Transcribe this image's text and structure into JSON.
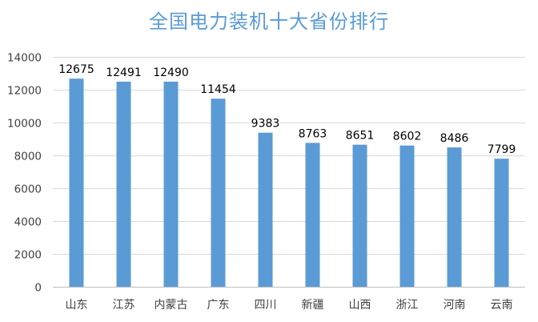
{
  "chart_data": {
    "type": "bar",
    "title": "全国电力装机十大省份排行",
    "categories": [
      "山东",
      "江苏",
      "内蒙古",
      "广东",
      "四川",
      "新疆",
      "山西",
      "浙江",
      "河南",
      "云南"
    ],
    "values": [
      12675,
      12491,
      12490,
      11454,
      9383,
      8763,
      8651,
      8602,
      8486,
      7799
    ],
    "ylim": [
      0,
      14000
    ],
    "yticks": [
      0,
      2000,
      4000,
      6000,
      8000,
      10000,
      12000,
      14000
    ],
    "xlabel": "",
    "ylabel": "",
    "grid": true,
    "legend": "none",
    "data_labels": true,
    "colors": {
      "bar": "#5b9bd5",
      "title": "#5b9bd5",
      "grid": "#d9d9d9",
      "text": "#404040"
    }
  }
}
